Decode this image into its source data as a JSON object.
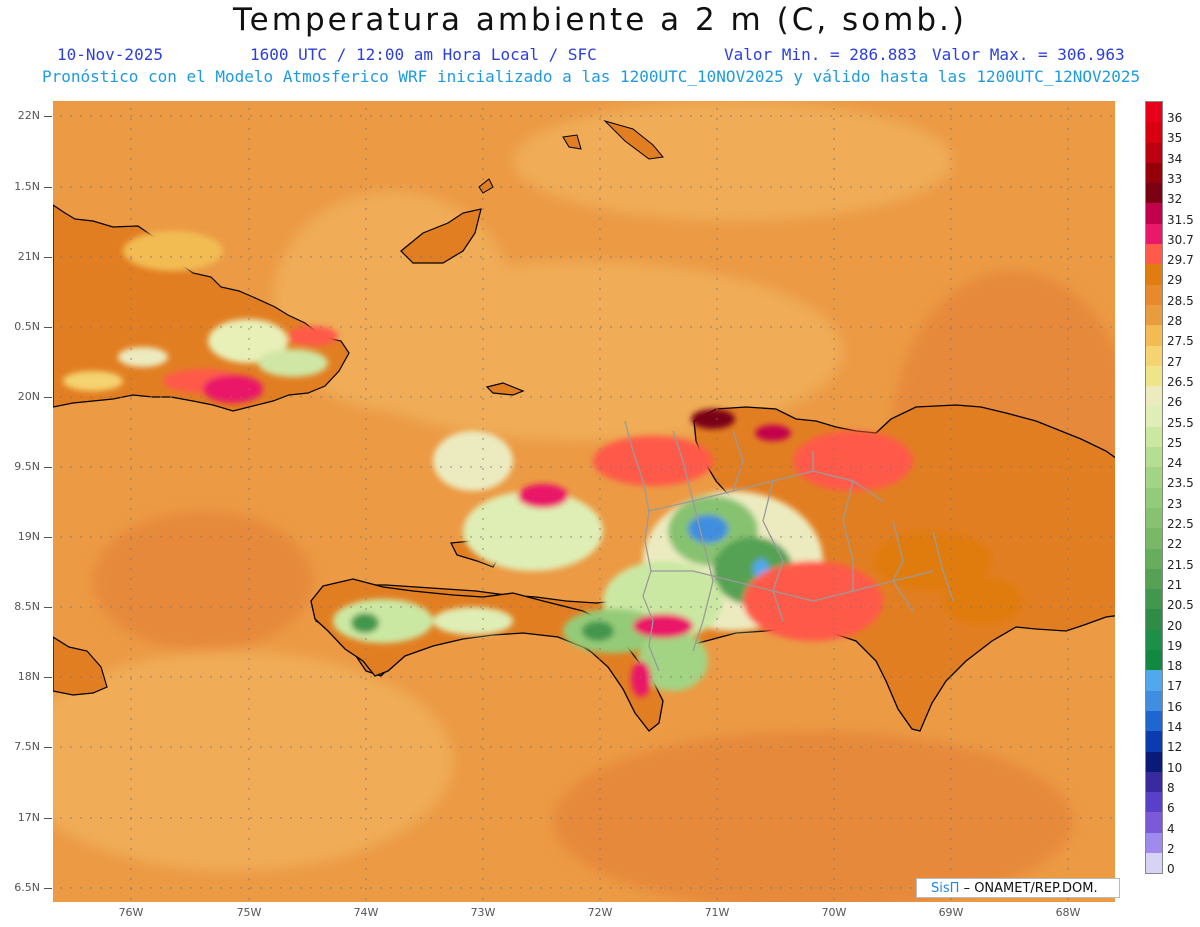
{
  "header": {
    "title": "Temperatura ambiente a 2 m (C, somb.)",
    "date": "10-Nov-2025",
    "time_info": "1600 UTC / 12:00 am Hora Local / SFC",
    "min_label": "Valor Min. = 286.883",
    "max_label": "Valor Max. = 306.963",
    "forecast_note": "Pronóstico con el Modelo Atmosferico WRF inicializado a las 1200UTC_10NOV2025 y válido hasta las  1200UTC_12NOV2025"
  },
  "axes": {
    "lat_labels": [
      "22N",
      "1.5N",
      "21N",
      "0.5N",
      "20N",
      "9.5N",
      "19N",
      "8.5N",
      "18N",
      "7.5N",
      "17N",
      "6.5N"
    ],
    "lon_labels": [
      "76W",
      "75W",
      "74W",
      "73W",
      "72W",
      "71W",
      "70W",
      "69W",
      "68W"
    ]
  },
  "legend": {
    "labels": [
      "36",
      "35",
      "34",
      "33",
      "32",
      "31.5",
      "30.7",
      "29.7",
      "29",
      "28.5",
      "28",
      "27.5",
      "27",
      "26.5",
      "26",
      "25.5",
      "25",
      "24",
      "23.5",
      "23",
      "22.5",
      "22",
      "21.5",
      "21",
      "20.5",
      "20",
      "19",
      "18",
      "17",
      "16",
      "14",
      "12",
      "10",
      "8",
      "6",
      "4",
      "2",
      "0"
    ],
    "colors": [
      "#e8001a",
      "#d80010",
      "#bb0010",
      "#960008",
      "#7a0012",
      "#c2004b",
      "#ea1868",
      "#ff5a4a",
      "#e07c10",
      "#e8892c",
      "#e89c3e",
      "#f2bc52",
      "#f5d370",
      "#f0e48a",
      "#ecebc0",
      "#dfeeb5",
      "#cbe8a3",
      "#b5de92",
      "#a3d483",
      "#94cb78",
      "#86c26f",
      "#78b866",
      "#67ad5e",
      "#55a255",
      "#42974e",
      "#2e8c47",
      "#1d8f48",
      "#138840",
      "#52a8ee",
      "#3f8ee0",
      "#1e66d0",
      "#0a3cb0",
      "#0a1a7a",
      "#3a2aa0",
      "#5a40c8",
      "#7b5ad8",
      "#a08aee",
      "#d7d3f5"
    ]
  },
  "map_colors": {
    "ocean": "#ec9a44",
    "ocean_dark": "#e6893a",
    "ocean_light": "#f0ac56",
    "land_base": "#e27e22",
    "coast": "#000000",
    "borders": "#9a9a9a"
  },
  "credit": {
    "brand": "SisΠ",
    "text": "– ONAMET/REP.DOM."
  }
}
